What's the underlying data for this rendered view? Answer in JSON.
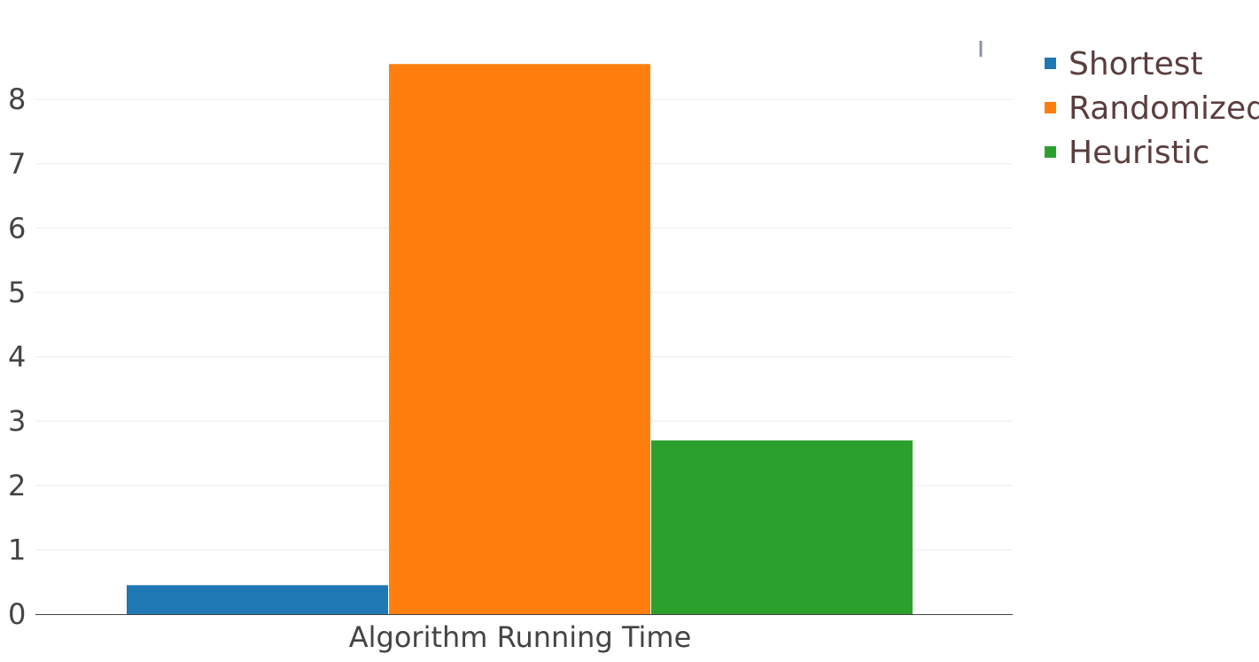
{
  "chart_data": {
    "type": "bar",
    "categories": [
      "Algorithm Running Time"
    ],
    "series": [
      {
        "name": "Shortest",
        "values": [
          0.45
        ],
        "color": "#1f77b4"
      },
      {
        "name": "Randomized",
        "values": [
          8.55
        ],
        "color": "#ff7f0e"
      },
      {
        "name": "Heuristic",
        "values": [
          2.7
        ],
        "color": "#2ca02c"
      }
    ],
    "y_ticks": [
      "0",
      "1",
      "2",
      "3",
      "4",
      "5",
      "6",
      "7",
      "8"
    ],
    "ylim": [
      0,
      9
    ],
    "grid": true,
    "legend_position": "top-right"
  }
}
